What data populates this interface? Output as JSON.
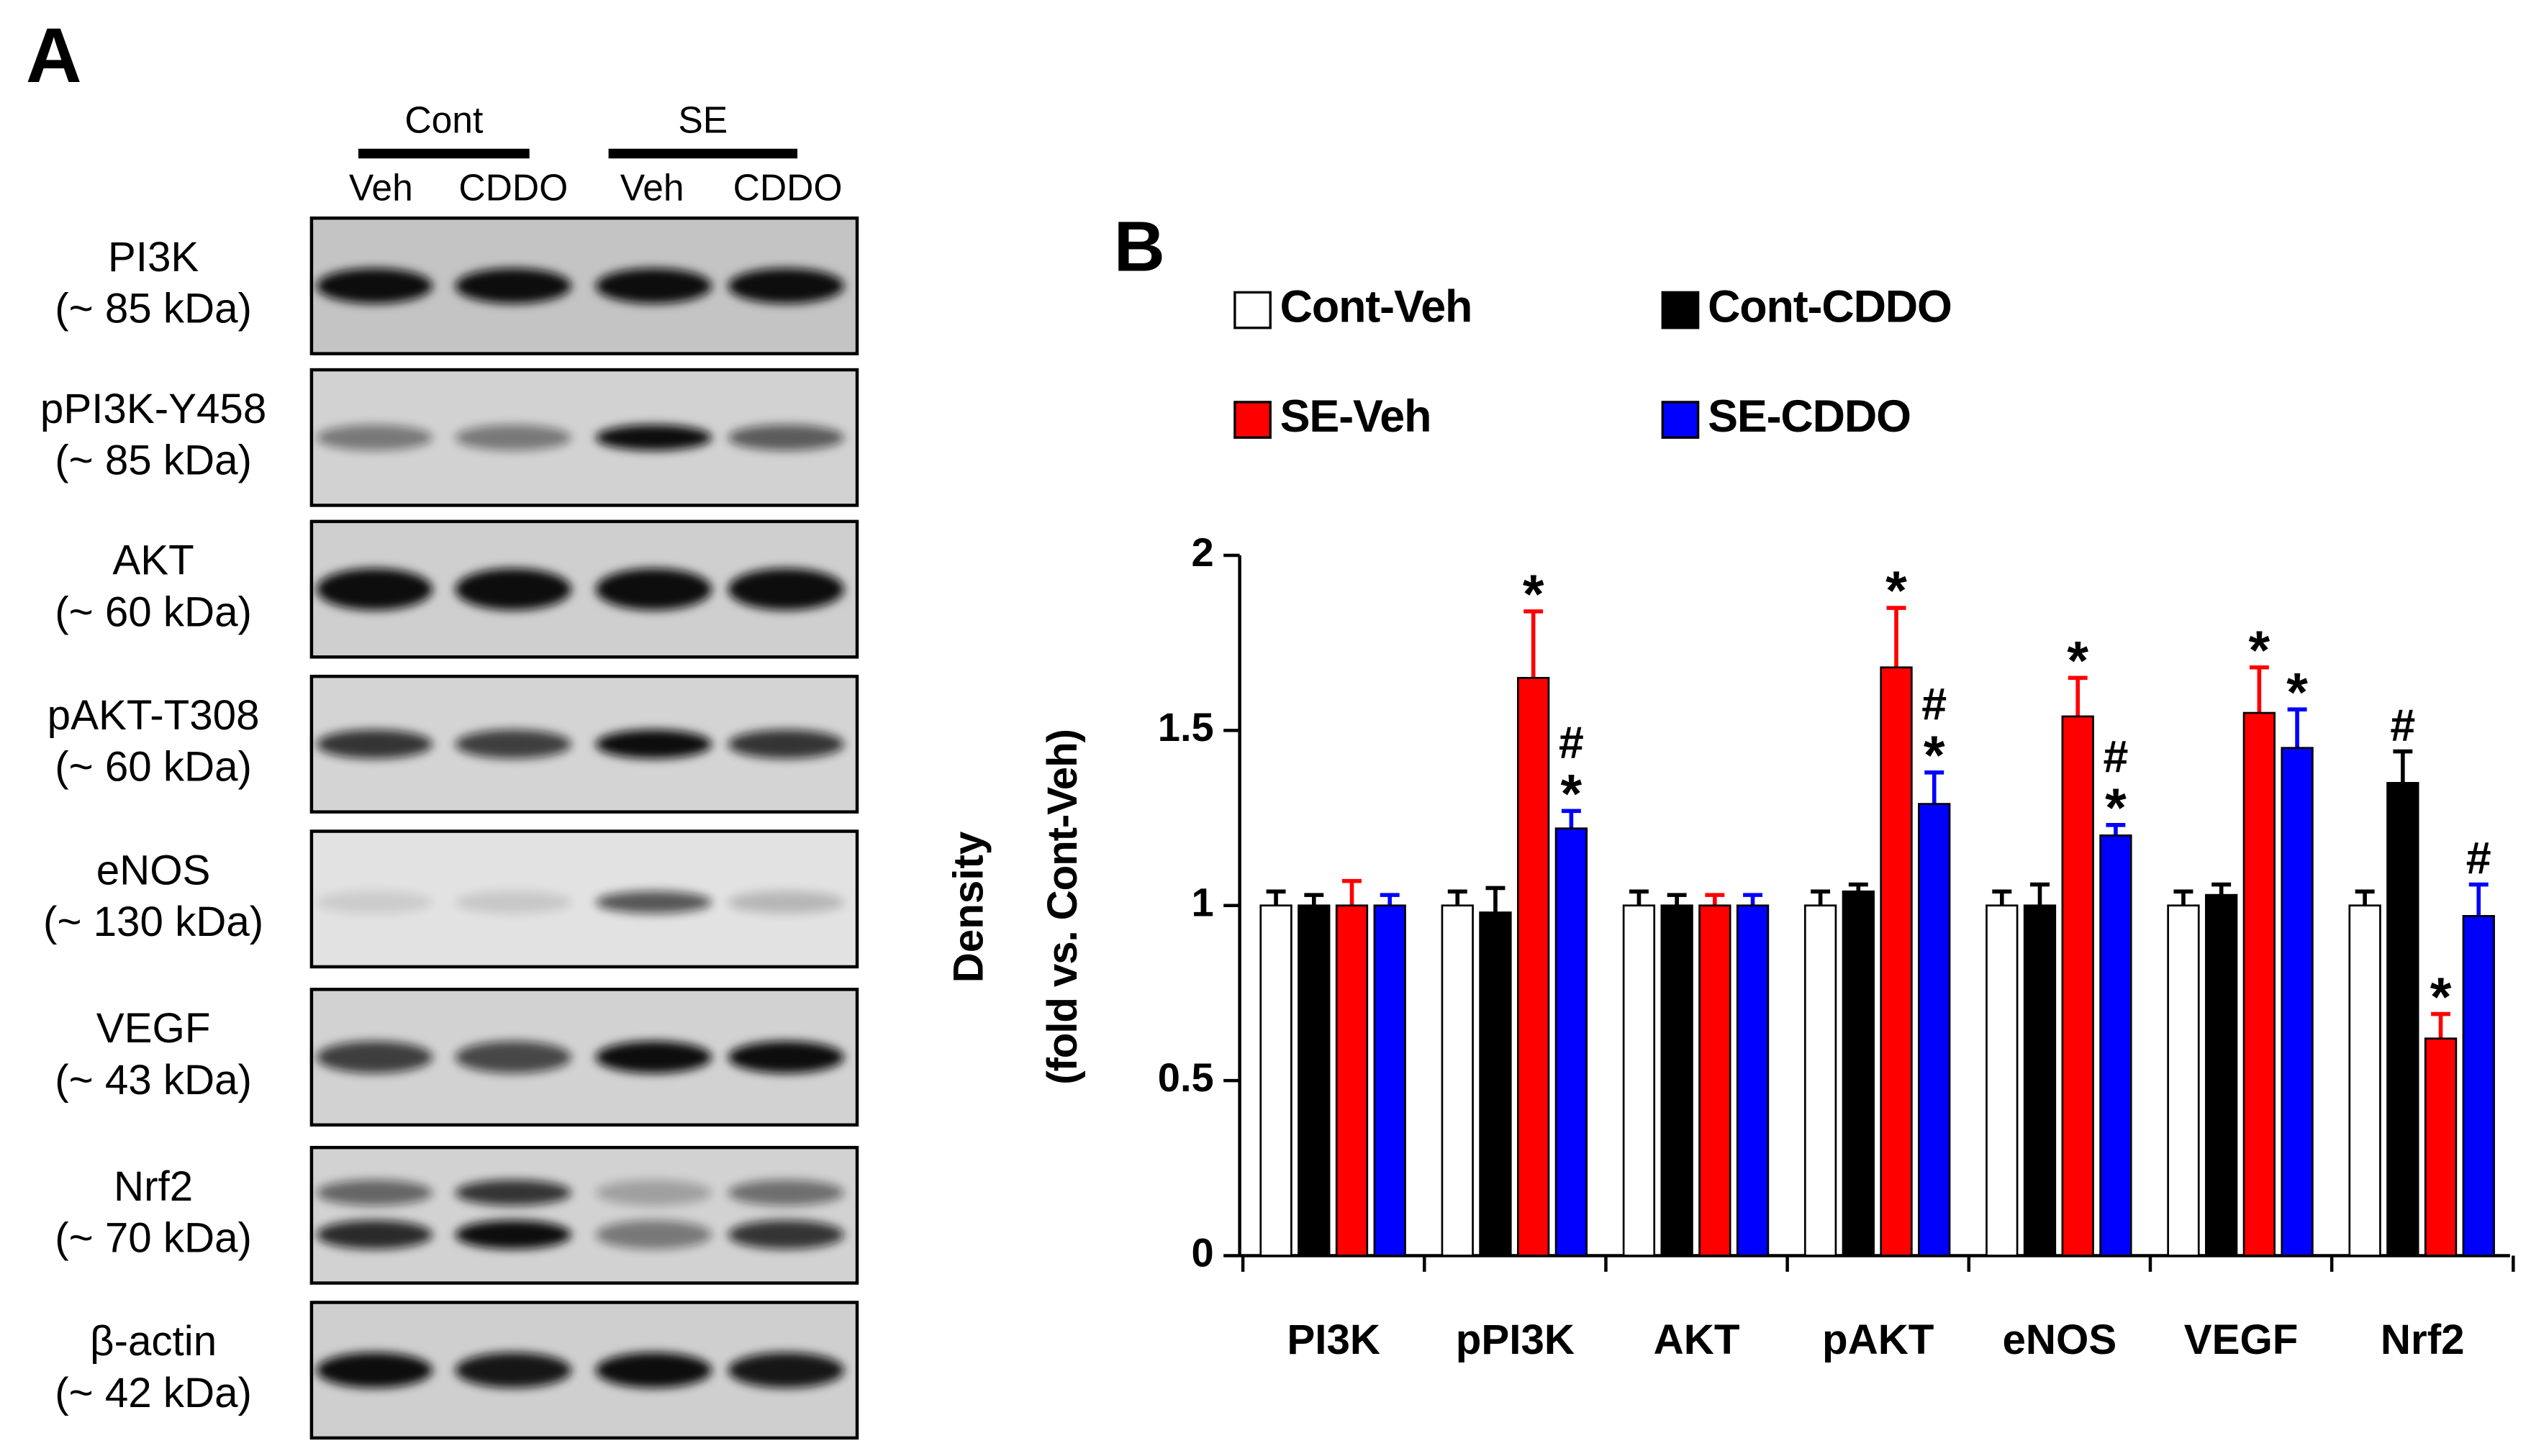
{
  "panel_a": {
    "label": "A",
    "groups": [
      "Cont",
      "SE"
    ],
    "lanes": [
      "Veh",
      "CDDO",
      "Veh",
      "CDDO"
    ],
    "blots": [
      {
        "name": "PI3K",
        "size": "(~ 85 kDa)"
      },
      {
        "name": "pPI3K-Y458",
        "size": "(~ 85 kDa)"
      },
      {
        "name": "AKT",
        "size": "(~ 60 kDa)"
      },
      {
        "name": "pAKT-T308",
        "size": "(~ 60 kDa)"
      },
      {
        "name": "eNOS",
        "size": "(~ 130 kDa)"
      },
      {
        "name": "VEGF",
        "size": "(~ 43 kDa)"
      },
      {
        "name": "Nrf2",
        "size": "(~ 70 kDa)"
      },
      {
        "name": "β-actin",
        "size": "(~ 42 kDa)"
      }
    ]
  },
  "chart_data": {
    "type": "bar",
    "panel_label": "B",
    "ylabel": [
      "Density",
      "(fold vs. Cont-Veh)"
    ],
    "categories": [
      "PI3K",
      "pPI3K",
      "AKT",
      "pAKT",
      "eNOS",
      "VEGF",
      "Nrf2"
    ],
    "ylim": [
      0,
      2
    ],
    "yticks": [
      0,
      0.5,
      1,
      1.5,
      2
    ],
    "series": [
      {
        "name": "Cont-Veh",
        "color": "#ffffff",
        "values": [
          1.0,
          1.0,
          1.0,
          1.0,
          1.0,
          1.0,
          1.0
        ],
        "errors": [
          0.04,
          0.04,
          0.04,
          0.04,
          0.04,
          0.04,
          0.04
        ],
        "annotations": [
          null,
          null,
          null,
          null,
          null,
          null,
          null
        ]
      },
      {
        "name": "Cont-CDDO",
        "color": "#000000",
        "values": [
          1.0,
          0.98,
          1.0,
          1.04,
          1.0,
          1.03,
          1.35
        ],
        "errors": [
          0.03,
          0.07,
          0.03,
          0.02,
          0.06,
          0.03,
          0.09
        ],
        "annotations": [
          null,
          null,
          null,
          null,
          null,
          null,
          [
            "#"
          ]
        ]
      },
      {
        "name": "SE-Veh",
        "color": "#ff0000",
        "values": [
          1.0,
          1.65,
          1.0,
          1.68,
          1.54,
          1.55,
          0.62
        ],
        "errors": [
          0.07,
          0.19,
          0.03,
          0.17,
          0.11,
          0.13,
          0.07
        ],
        "annotations": [
          null,
          [
            "*"
          ],
          null,
          [
            "*"
          ],
          [
            "*"
          ],
          [
            "*"
          ],
          [
            "*"
          ]
        ]
      },
      {
        "name": "SE-CDDO",
        "color": "#0000ff",
        "values": [
          1.0,
          1.22,
          1.0,
          1.29,
          1.2,
          1.45,
          0.97
        ],
        "errors": [
          0.03,
          0.05,
          0.03,
          0.09,
          0.03,
          0.11,
          0.09
        ],
        "annotations": [
          null,
          [
            "#",
            "*"
          ],
          null,
          [
            "#",
            "*"
          ],
          [
            "#",
            "*"
          ],
          [
            "*"
          ],
          [
            "#"
          ]
        ]
      }
    ]
  }
}
